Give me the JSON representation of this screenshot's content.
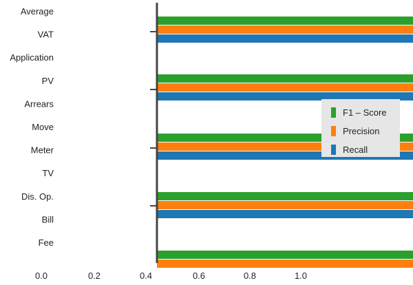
{
  "chart_data": {
    "type": "bar",
    "orientation": "horizontal",
    "categories": [
      "Average",
      "VAT",
      "Application",
      "PV",
      "Arrears",
      "Move",
      "Meter",
      "TV",
      "Dis. Op.",
      "Bill",
      "Fee"
    ],
    "series": [
      {
        "name": "F1 – Score",
        "color": "#2ca02c",
        "values": [
          null,
          1.0,
          null,
          1.0,
          null,
          null,
          1.0,
          null,
          1.0,
          null,
          1.0
        ]
      },
      {
        "name": "Precision",
        "color": "#ff7f0e",
        "values": [
          null,
          1.0,
          null,
          1.0,
          null,
          null,
          1.0,
          null,
          1.0,
          null,
          1.0
        ]
      },
      {
        "name": "Recall",
        "color": "#1f77b4",
        "values": [
          null,
          1.0,
          null,
          1.0,
          null,
          null,
          1.0,
          null,
          1.0,
          null,
          null
        ]
      }
    ],
    "xticks": [
      "0.0",
      "0.2",
      "0.4",
      "0.6",
      "0.8",
      "1.0"
    ],
    "xlim": [
      0.4,
      1.0
    ],
    "legend": "right",
    "grid": false
  }
}
